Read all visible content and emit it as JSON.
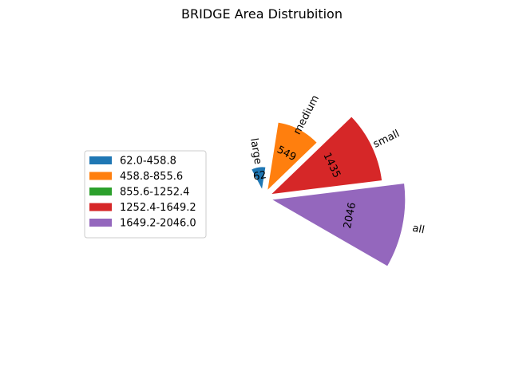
{
  "chart_data": {
    "type": "pie",
    "title": "BRIDGE Area Distrubition",
    "categories": [
      "large",
      "medium",
      "small",
      "all"
    ],
    "values": [
      62,
      549,
      1435,
      2046
    ],
    "value_labels": [
      "62",
      "549",
      "1435",
      "2046"
    ],
    "slice_colors": [
      "#1f77b4",
      "#ff7f0e",
      "#d62728",
      "#9467bd"
    ],
    "legend": {
      "placement": "left",
      "entries": [
        {
          "label": "62.0-458.8",
          "color": "#1f77b4"
        },
        {
          "label": "458.8-855.6",
          "color": "#ff7f0e"
        },
        {
          "label": "855.6-1252.4",
          "color": "#2ca02c"
        },
        {
          "label": "1252.4-1649.2",
          "color": "#d62728"
        },
        {
          "label": "1649.2-2046.0",
          "color": "#9467bd"
        }
      ]
    }
  }
}
